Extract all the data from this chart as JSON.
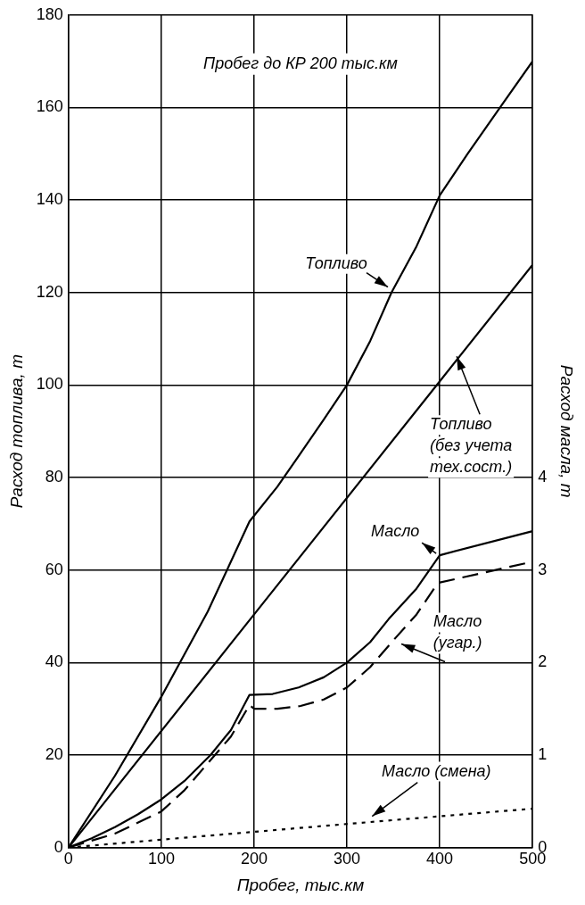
{
  "chart_data": {
    "type": "line",
    "title": "Пробег до КР 200 тыс.км",
    "xlabel": "Пробег, тыс.км",
    "ylabel": "Расход топлива, т",
    "y2label": "Расход масла, т",
    "xlim": [
      0,
      500
    ],
    "xticks": [
      0,
      100,
      200,
      300,
      400,
      500
    ],
    "ylim": [
      0,
      180
    ],
    "yticks": [
      0,
      20,
      40,
      60,
      80,
      100,
      120,
      140,
      160,
      180
    ],
    "y2lim": [
      0,
      9
    ],
    "y2ticks": [
      0,
      1,
      2,
      3,
      4
    ],
    "grid": true,
    "legend": false,
    "marker": "none",
    "series": [
      {
        "name": "Топливо",
        "color": "#000000",
        "line_style": "solid",
        "x": [
          0,
          50,
          100,
          150,
          195,
          225,
          252,
          275,
          300,
          325,
          348,
          375,
          400,
          430,
          465,
          500
        ],
        "values": [
          0,
          15.5,
          32.6,
          51,
          70.5,
          78,
          85.8,
          92.5,
          100,
          109.5,
          120,
          130,
          141,
          150,
          160,
          170
        ]
      },
      {
        "name": "Топливо (без учета тех.сост.)",
        "color": "#000000",
        "line_style": "solid",
        "x": [
          0,
          200,
          400,
          500
        ],
        "values": [
          0,
          50.4,
          100.8,
          126
        ]
      },
      {
        "name": "Масло",
        "color": "#000000",
        "line_style": "solid",
        "axis": "y2",
        "x": [
          0,
          25,
          50,
          75,
          100,
          125,
          153,
          175,
          195,
          220,
          248,
          275,
          300,
          325,
          345,
          375,
          400,
          500
        ],
        "values": [
          0,
          0.1,
          0.22,
          0.36,
          0.52,
          0.72,
          1.0,
          1.27,
          1.65,
          1.66,
          1.73,
          1.84,
          2.0,
          2.22,
          2.47,
          2.8,
          3.16,
          3.42
        ]
      },
      {
        "name": "Масло (угар.)",
        "color": "#000000",
        "line_style": "dashed",
        "axis": "y2",
        "x": [
          0,
          50,
          100,
          125,
          150,
          175,
          195,
          200,
          225,
          250,
          275,
          300,
          325,
          350,
          375,
          398,
          500
        ],
        "values": [
          0,
          0.15,
          0.39,
          0.62,
          0.91,
          1.2,
          1.54,
          1.5,
          1.5,
          1.53,
          1.6,
          1.73,
          1.95,
          2.24,
          2.52,
          2.86,
          3.09
        ]
      },
      {
        "name": "Масло (смена)",
        "color": "#000000",
        "line_style": "dotted",
        "axis": "y2",
        "x": [
          0,
          330,
          500
        ],
        "values": [
          0,
          0.28,
          0.42
        ]
      }
    ]
  }
}
